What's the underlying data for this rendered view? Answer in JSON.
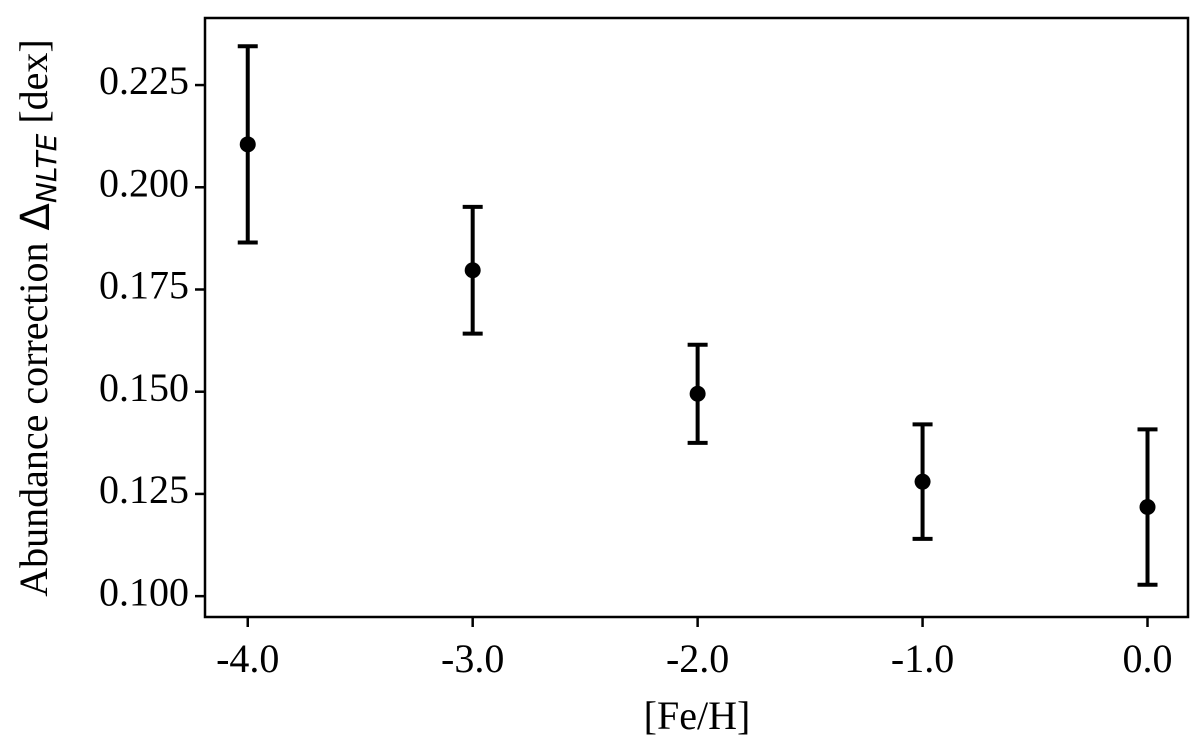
{
  "chart_data": {
    "type": "errorbar",
    "x_label": "[Fe/H]",
    "y_label": "Abundance correction",
    "y_label_symbol": "Δ",
    "y_label_sub": "NLTE",
    "y_label_unit": "[dex]",
    "x": [
      -4,
      -3,
      -2,
      -1,
      0
    ],
    "values": [
      0.2105,
      0.1797,
      0.1495,
      0.128,
      0.1218
    ],
    "errors": [
      0.024,
      0.0155,
      0.012,
      0.014,
      0.019
    ],
    "color": "#000000",
    "xlim": [
      -4.19,
      0.18
    ],
    "ylim": [
      0.0949,
      0.2414
    ],
    "xticks": [
      {
        "value": -4,
        "label": "-4.0"
      },
      {
        "value": -3,
        "label": "-3.0"
      },
      {
        "value": -2,
        "label": "-2.0"
      },
      {
        "value": -1,
        "label": "-1.0"
      },
      {
        "value": 0,
        "label": "0.0"
      }
    ],
    "yticks": [
      {
        "value": 0.1,
        "label": "0.100"
      },
      0.125,
      {
        "value": 0.15,
        "label": "0.150"
      },
      0.175,
      {
        "value": 0.2,
        "label": "0.200"
      },
      0.225
    ]
  }
}
